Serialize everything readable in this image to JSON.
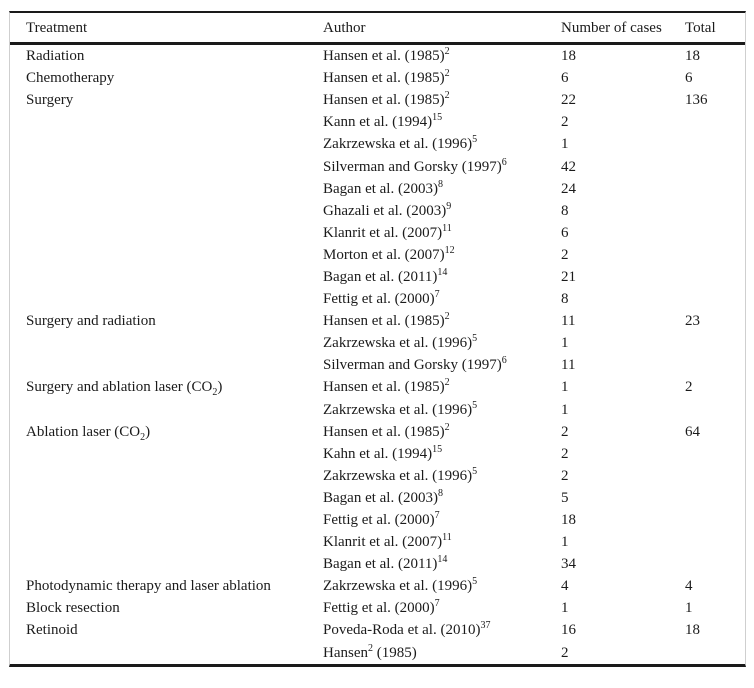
{
  "colors": {
    "background": "#ffffff",
    "text": "#1b1b1b",
    "rule": "#1a1a1a",
    "frame_border": "#cfcfcf"
  },
  "table": {
    "headers": [
      "Treatment",
      "Author",
      "Number of cases",
      "Total"
    ],
    "rows": [
      {
        "treatment": "Radiation",
        "author": "Hansen et al. (1985)",
        "author_sup": "2",
        "cases": "18",
        "total": "18"
      },
      {
        "treatment": "Chemotherapy",
        "author": "Hansen et al. (1985)",
        "author_sup": "2",
        "cases": "6",
        "total": "6"
      },
      {
        "treatment": "Surgery",
        "author": "Hansen et al. (1985)",
        "author_sup": "2",
        "cases": "22",
        "total": "136"
      },
      {
        "author": "Kann et al. (1994)",
        "author_sup": "15",
        "cases": "2"
      },
      {
        "author": "Zakrzewska et al. (1996)",
        "author_sup": "5",
        "cases": "1"
      },
      {
        "author": "Silverman and Gorsky (1997)",
        "author_sup": "6",
        "cases": "42"
      },
      {
        "author": "Bagan et al. (2003)",
        "author_sup": "8",
        "cases": "24"
      },
      {
        "author": "Ghazali et al. (2003)",
        "author_sup": "9",
        "cases": "8"
      },
      {
        "author": "Klanrit et al. (2007)",
        "author_sup": "11",
        "cases": "6"
      },
      {
        "author": "Morton et al. (2007)",
        "author_sup": "12",
        "cases": "2"
      },
      {
        "author": "Bagan et al. (2011)",
        "author_sup": "14",
        "cases": "21"
      },
      {
        "author": "Fettig et al. (2000)",
        "author_sup": "7",
        "cases": "8"
      },
      {
        "treatment": "Surgery and radiation",
        "author": "Hansen et al. (1985)",
        "author_sup": "2",
        "cases": "11",
        "total": "23"
      },
      {
        "author": "Zakrzewska et al. (1996)",
        "author_sup": "5",
        "cases": "1"
      },
      {
        "author": "Silverman and Gorsky (1997)",
        "author_sup": "6",
        "cases": "11"
      },
      {
        "treatment": "Surgery and ablation laser (CO",
        "treatment_sub": "2",
        "treatment_after": ")",
        "author": "Hansen et al. (1985)",
        "author_sup": "2",
        "cases": "1",
        "total": "2"
      },
      {
        "author": "Zakrzewska et al. (1996)",
        "author_sup": "5",
        "cases": "1"
      },
      {
        "treatment": "Ablation laser (CO",
        "treatment_sub": "2",
        "treatment_after": ")",
        "author": "Hansen et al. (1985)",
        "author_sup": "2",
        "cases": "2",
        "total": "64"
      },
      {
        "author": "Kahn et al. (1994)",
        "author_sup": "15",
        "cases": "2"
      },
      {
        "author": "Zakrzewska et al. (1996)",
        "author_sup": "5",
        "cases": "2"
      },
      {
        "author": "Bagan et al. (2003)",
        "author_sup": "8",
        "cases": "5"
      },
      {
        "author": "Fettig et al. (2000)",
        "author_sup": "7",
        "cases": "18"
      },
      {
        "author": "Klanrit et al. (2007)",
        "author_sup": "11",
        "cases": "1"
      },
      {
        "author": "Bagan et al. (2011)",
        "author_sup": "14",
        "cases": "34"
      },
      {
        "treatment": "Photodynamic therapy and laser ablation",
        "author": "Zakrzewska et al. (1996)",
        "author_sup": "5",
        "cases": "4",
        "total": "4"
      },
      {
        "treatment": "Block resection",
        "author": "Fettig et al. (2000)",
        "author_sup": "7",
        "cases": "1",
        "total": "1"
      },
      {
        "treatment": "Retinoid",
        "author": "Poveda-Roda et al. (2010)",
        "author_sup": "37",
        "cases": "16",
        "total": "18"
      },
      {
        "author": "Hansen",
        "author_sup": "2",
        "author_after": " (1985)",
        "cases": "2"
      }
    ]
  }
}
